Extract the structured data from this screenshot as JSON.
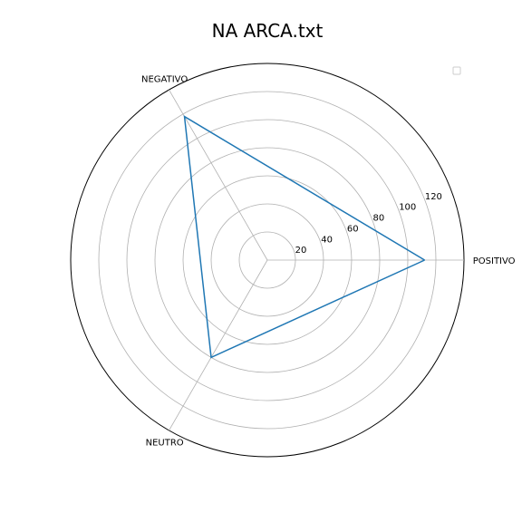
{
  "chart_data": {
    "type": "radar",
    "title": "NA ARCA.txt",
    "categories": [
      "POSITIVO",
      "NEGATIVO",
      "NEUTRO"
    ],
    "series": [
      {
        "values": [
          112,
          118,
          80
        ],
        "color": "#1f77b4"
      }
    ],
    "radial_ticks": [
      20,
      40,
      60,
      80,
      100,
      120
    ],
    "rmax": 140,
    "grid": true,
    "legend": {
      "placement": "top-right",
      "entries": []
    }
  }
}
